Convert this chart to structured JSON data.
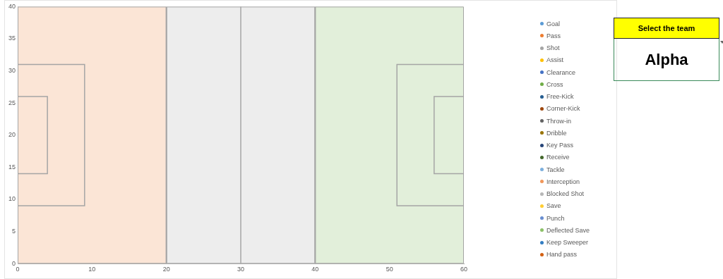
{
  "chart_data": [
    {
      "type": "scatter",
      "xlim": [
        0,
        60
      ],
      "ylim": [
        0,
        40
      ],
      "xticks": [
        0,
        10,
        20,
        30,
        40,
        50,
        60
      ],
      "yticks": [
        0,
        5,
        10,
        15,
        20,
        25,
        30,
        35,
        40
      ],
      "grid": false,
      "legend": "right",
      "marker": "circle",
      "bands": [
        {
          "axis": "x",
          "from": 0,
          "to": 20,
          "color": "#fbe5d6"
        },
        {
          "axis": "x",
          "from": 20,
          "to": 40,
          "color": "#ededed"
        },
        {
          "axis": "x",
          "from": 40,
          "to": 60,
          "color": "#e2efda"
        }
      ],
      "ref_lines": [
        {
          "axis": "x",
          "value": 20,
          "color": "#a5a5a5"
        },
        {
          "axis": "x",
          "value": 30,
          "color": "#a5a5a5"
        },
        {
          "axis": "x",
          "value": 40,
          "color": "#a5a5a5"
        }
      ],
      "series": [
        {
          "type": "line",
          "marker": "none",
          "color": "#a5a5a5",
          "x": [
            0,
            9,
            9,
            0
          ],
          "values": [
            31,
            31,
            9,
            9
          ]
        },
        {
          "type": "line",
          "marker": "none",
          "color": "#a5a5a5",
          "x": [
            0,
            4,
            4,
            0
          ],
          "values": [
            26,
            26,
            14,
            14
          ]
        },
        {
          "type": "line",
          "marker": "none",
          "color": "#a5a5a5",
          "x": [
            60,
            51,
            51,
            60
          ],
          "values": [
            31,
            31,
            9,
            9
          ]
        },
        {
          "type": "line",
          "marker": "none",
          "color": "#a5a5a5",
          "x": [
            60,
            56,
            56,
            60
          ],
          "values": [
            26,
            26,
            14,
            14
          ]
        },
        {
          "name": "Goal",
          "color": "#5b9bd5"
        },
        {
          "name": "Pass",
          "color": "#ed7d31"
        },
        {
          "name": "Shot",
          "color": "#a5a5a5"
        },
        {
          "name": "Assist",
          "color": "#ffc000"
        },
        {
          "name": "Clearance",
          "color": "#4472c4"
        },
        {
          "name": "Cross",
          "color": "#70ad47"
        },
        {
          "name": "Free-Kick",
          "color": "#255e91"
        },
        {
          "name": "Corner-Kick",
          "color": "#9e480e"
        },
        {
          "name": "Throw-in",
          "color": "#636363"
        },
        {
          "name": "Dribble",
          "color": "#997300"
        },
        {
          "name": "Key Pass",
          "color": "#264478"
        },
        {
          "name": "Receive",
          "color": "#43682b"
        },
        {
          "name": "Tackle",
          "color": "#7cafdd"
        },
        {
          "name": "Interception",
          "color": "#f1975a"
        },
        {
          "name": "Blocked Shot",
          "color": "#b7b7b7"
        },
        {
          "name": "Save",
          "color": "#ffcd33"
        },
        {
          "name": "Punch",
          "color": "#698ed0"
        },
        {
          "name": "Deflected Save",
          "color": "#8cc168"
        },
        {
          "name": "Keep Sweeper",
          "color": "#327dc2"
        },
        {
          "name": "Hand pass",
          "color": "#d26012"
        }
      ]
    },
    {
      "type": "other",
      "title": "Select the team",
      "annotations": [
        "Alpha"
      ]
    }
  ]
}
